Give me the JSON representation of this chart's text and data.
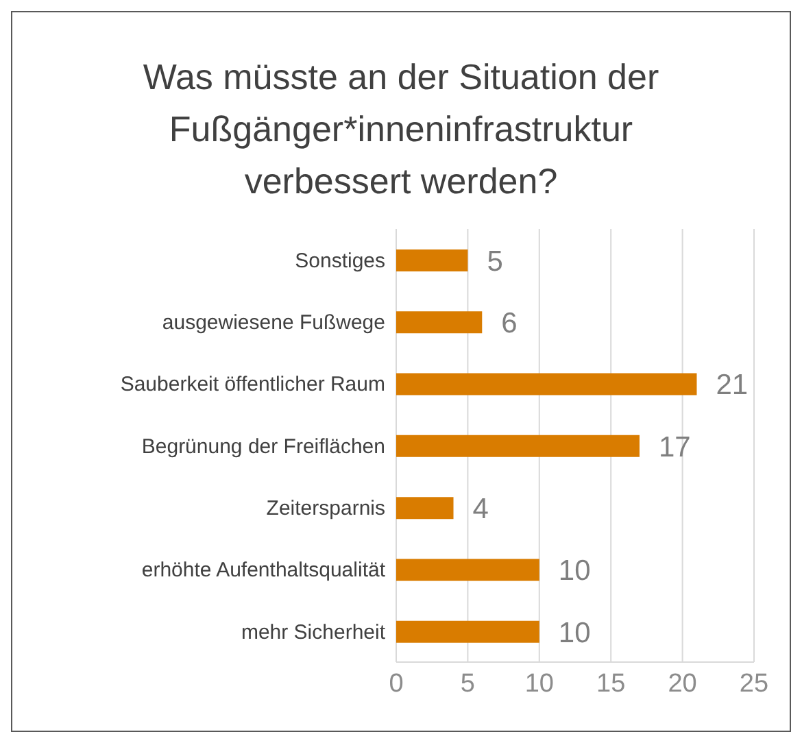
{
  "chart_data": {
    "type": "bar",
    "orientation": "horizontal",
    "title": "Was müsste an der Situation der Fußgänger*inneninfrastruktur verbessert werden?",
    "categories": [
      "Sonstiges",
      "ausgewiesene Fußwege",
      "Sauberkeit öffentlicher Raum",
      "Begrünung der Freiflächen",
      "Zeitersparnis",
      "erhöhte Aufenthaltsqualität",
      "mehr Sicherheit"
    ],
    "values": [
      5,
      6,
      21,
      17,
      4,
      10,
      10
    ],
    "color": "#d97c00",
    "xlim": [
      0,
      25
    ],
    "xticks": [
      0,
      5,
      10,
      15,
      20,
      25
    ],
    "grid": "x",
    "data_labels": true
  }
}
